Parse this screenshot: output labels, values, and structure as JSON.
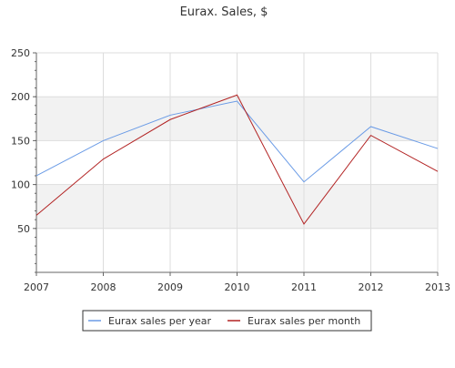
{
  "chart_data": {
    "type": "line",
    "title": "Eurax. Sales, $",
    "xlabel": "",
    "ylabel": "",
    "x": [
      "2007",
      "2008",
      "2009",
      "2010",
      "2011",
      "2012",
      "2013"
    ],
    "ylim": [
      0,
      250
    ],
    "yticks": [
      50,
      100,
      150,
      200,
      250
    ],
    "grid": true,
    "legend_position": "bottom-center",
    "series": [
      {
        "name": "Eurax sales per year",
        "color": "#6a9be6",
        "values": [
          110,
          150,
          179,
          195,
          103,
          166,
          141
        ]
      },
      {
        "name": "Eurax sales per month",
        "color": "#b22222",
        "values": [
          65,
          129,
          174,
          202,
          55,
          156,
          115
        ]
      }
    ],
    "band_color": "#f2f2f2",
    "grid_color": "#dddddd",
    "axis_color": "#666666"
  }
}
